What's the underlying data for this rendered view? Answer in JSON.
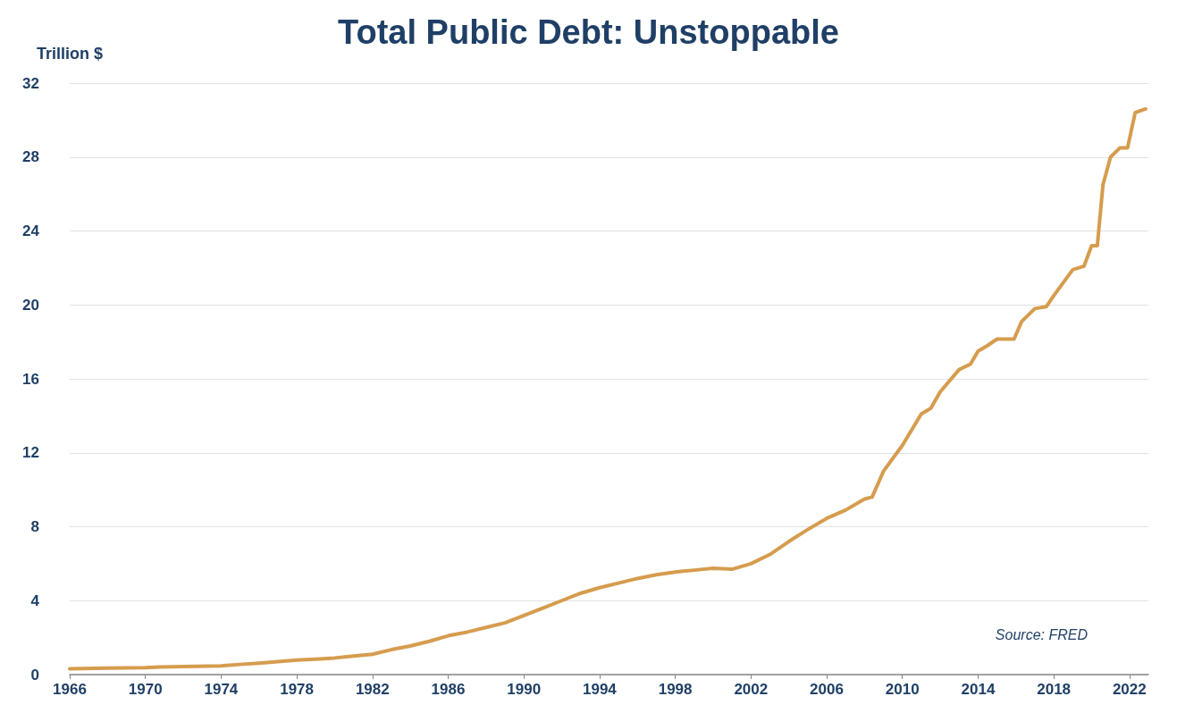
{
  "chart_data": {
    "type": "line",
    "title": "Total Public Debt: Unstoppable",
    "ylabel": "Trillion $",
    "annotations": [
      "Source: FRED"
    ],
    "x": [
      1966,
      1968,
      1970,
      1970.8,
      1972,
      1974,
      1975,
      1976,
      1977,
      1978,
      1979,
      1980,
      1981,
      1982,
      1983,
      1984,
      1985,
      1986,
      1987,
      1988,
      1989,
      1990,
      1991,
      1992,
      1993,
      1994,
      1995,
      1996,
      1997,
      1998,
      1999,
      2000,
      2001,
      2002,
      2003,
      2004,
      2005,
      2006,
      2007,
      2008,
      2008.4,
      2009,
      2010,
      2011,
      2011.5,
      2012,
      2013,
      2013.6,
      2014,
      2014.5,
      2015,
      2015.9,
      2016.3,
      2017,
      2017.6,
      2018,
      2018.5,
      2019,
      2019.6,
      2020,
      2020.3,
      2020.6,
      2021,
      2021.5,
      2021.9,
      2022.3,
      2022.85
    ],
    "series": [
      {
        "color": "#d69c4e",
        "values": [
          0.32,
          0.35,
          0.37,
          0.41,
          0.43,
          0.47,
          0.55,
          0.62,
          0.7,
          0.78,
          0.83,
          0.9,
          1.0,
          1.1,
          1.35,
          1.55,
          1.8,
          2.1,
          2.3,
          2.55,
          2.8,
          3.2,
          3.6,
          4.0,
          4.4,
          4.7,
          4.95,
          5.2,
          5.4,
          5.55,
          5.65,
          5.75,
          5.7,
          6.0,
          6.5,
          7.2,
          7.85,
          8.45,
          8.9,
          9.5,
          9.6,
          11.0,
          12.4,
          14.1,
          14.4,
          15.3,
          16.5,
          16.8,
          17.5,
          17.8,
          18.15,
          18.15,
          19.1,
          19.8,
          19.9,
          20.5,
          21.2,
          21.9,
          22.1,
          23.2,
          23.2,
          26.5,
          28.0,
          28.5,
          28.5,
          30.4,
          30.6
        ]
      }
    ],
    "xlim": [
      1966,
      2023
    ],
    "xticks": [
      1966,
      1970,
      1974,
      1978,
      1982,
      1986,
      1990,
      1994,
      1998,
      2002,
      2006,
      2010,
      2014,
      2018,
      2022
    ],
    "ylim": [
      0,
      32
    ],
    "yticks": [
      0,
      4,
      8,
      12,
      16,
      20,
      24,
      28,
      32
    ],
    "grid": "y",
    "marker": "none",
    "line_style": "solid"
  }
}
